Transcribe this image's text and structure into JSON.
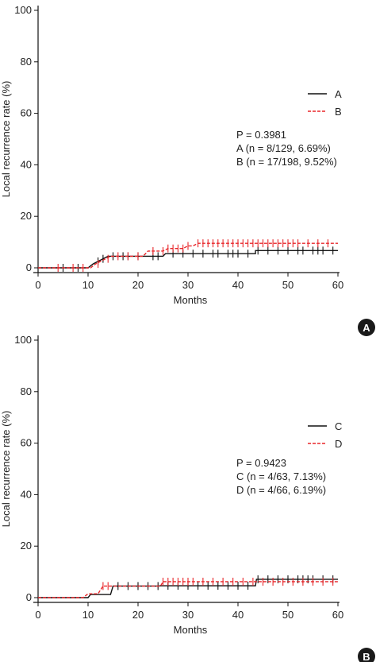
{
  "chart_data": [
    {
      "type": "line",
      "panel_label": "A",
      "xlabel": "Months",
      "ylabel": "Local recurrence rate (%)",
      "xlim": [
        0,
        60
      ],
      "ylim": [
        0,
        100
      ],
      "x_ticks": [
        "0",
        "10",
        "20",
        "30",
        "40",
        "50",
        "60"
      ],
      "y_ticks": [
        "0",
        "20",
        "40",
        "60",
        "80",
        "100"
      ],
      "legend_position": "top-right",
      "annotations": [
        "P = 0.3981",
        "A (n = 8/129, 6.69%)",
        "B (n = 17/198, 9.52%)"
      ],
      "series": [
        {
          "name": "A",
          "color": "#111111",
          "dash": "solid",
          "steps": [
            [
              0,
              0
            ],
            [
              10,
              0
            ],
            [
              11,
              1.5
            ],
            [
              12,
              2.5
            ],
            [
              13,
              3.5
            ],
            [
              14,
              4.5
            ],
            [
              25,
              4.5
            ],
            [
              25.5,
              5.5
            ],
            [
              43.5,
              5.5
            ],
            [
              43.5,
              6.69
            ],
            [
              60,
              6.69
            ]
          ],
          "censored": [
            5,
            8,
            12,
            13,
            15,
            17,
            18,
            20,
            23,
            24,
            27,
            29,
            31,
            33,
            35,
            36,
            38,
            39,
            40,
            42,
            44,
            46,
            48,
            50,
            52,
            53,
            55,
            56,
            57,
            59
          ]
        },
        {
          "name": "B",
          "color": "#e8262a",
          "dash": "dashed",
          "steps": [
            [
              0,
              0
            ],
            [
              10.5,
              0
            ],
            [
              11.5,
              1.5
            ],
            [
              12.5,
              2.5
            ],
            [
              13.5,
              3.5
            ],
            [
              14.5,
              4.5
            ],
            [
              21,
              4.5
            ],
            [
              22,
              6.5
            ],
            [
              25,
              6.5
            ],
            [
              26,
              7.5
            ],
            [
              29,
              7.5
            ],
            [
              30,
              8.5
            ],
            [
              31,
              8.5
            ],
            [
              32,
              9.52
            ],
            [
              60,
              9.52
            ]
          ],
          "censored": [
            4,
            7,
            9,
            12,
            14,
            16,
            18,
            20,
            23,
            25,
            26,
            27,
            28,
            29,
            30,
            32,
            33,
            34,
            35,
            36,
            37,
            38,
            39,
            40,
            41,
            42,
            43,
            44,
            45,
            46,
            47,
            48,
            49,
            50,
            51,
            52,
            54,
            56,
            58
          ]
        }
      ]
    },
    {
      "type": "line",
      "panel_label": "B",
      "xlabel": "Months",
      "ylabel": "Local recurrence rate (%)",
      "xlim": [
        0,
        60
      ],
      "ylim": [
        0,
        100
      ],
      "x_ticks": [
        "0",
        "10",
        "20",
        "30",
        "40",
        "50",
        "60"
      ],
      "y_ticks": [
        "0",
        "20",
        "40",
        "60",
        "80",
        "100"
      ],
      "legend_position": "top-right",
      "annotations": [
        "P = 0.9423",
        "C (n = 4/63, 7.13%)",
        "D (n = 4/66, 6.19%)"
      ],
      "series": [
        {
          "name": "C",
          "color": "#111111",
          "dash": "solid",
          "steps": [
            [
              0,
              0
            ],
            [
              10,
              0
            ],
            [
              10.5,
              1.2
            ],
            [
              14.5,
              1.2
            ],
            [
              15,
              4.5
            ],
            [
              24,
              4.5
            ],
            [
              24.5,
              4.6
            ],
            [
              43.5,
              4.6
            ],
            [
              43.7,
              7.13
            ],
            [
              60,
              7.13
            ]
          ],
          "censored": [
            16,
            18,
            20,
            22,
            24,
            26,
            28,
            30,
            32,
            34,
            36,
            38,
            40,
            42,
            44,
            46,
            48,
            50,
            52,
            53,
            54,
            55,
            57,
            59
          ]
        },
        {
          "name": "D",
          "color": "#e8262a",
          "dash": "dashed",
          "steps": [
            [
              0,
              0
            ],
            [
              9,
              0
            ],
            [
              10,
              1.5
            ],
            [
              12,
              1.5
            ],
            [
              12.5,
              3
            ],
            [
              13,
              4.5
            ],
            [
              24.5,
              4.5
            ],
            [
              25,
              6.19
            ],
            [
              60,
              6.19
            ]
          ],
          "censored": [
            13,
            14,
            25,
            26,
            27,
            28,
            29,
            30,
            31,
            33,
            35,
            37,
            39,
            41,
            43,
            45,
            47,
            49,
            51,
            53,
            55,
            57,
            59
          ]
        }
      ]
    }
  ],
  "colors": {
    "badge_bg": "#1a1a1a",
    "axis": "#111111",
    "red": "#e8262a"
  }
}
